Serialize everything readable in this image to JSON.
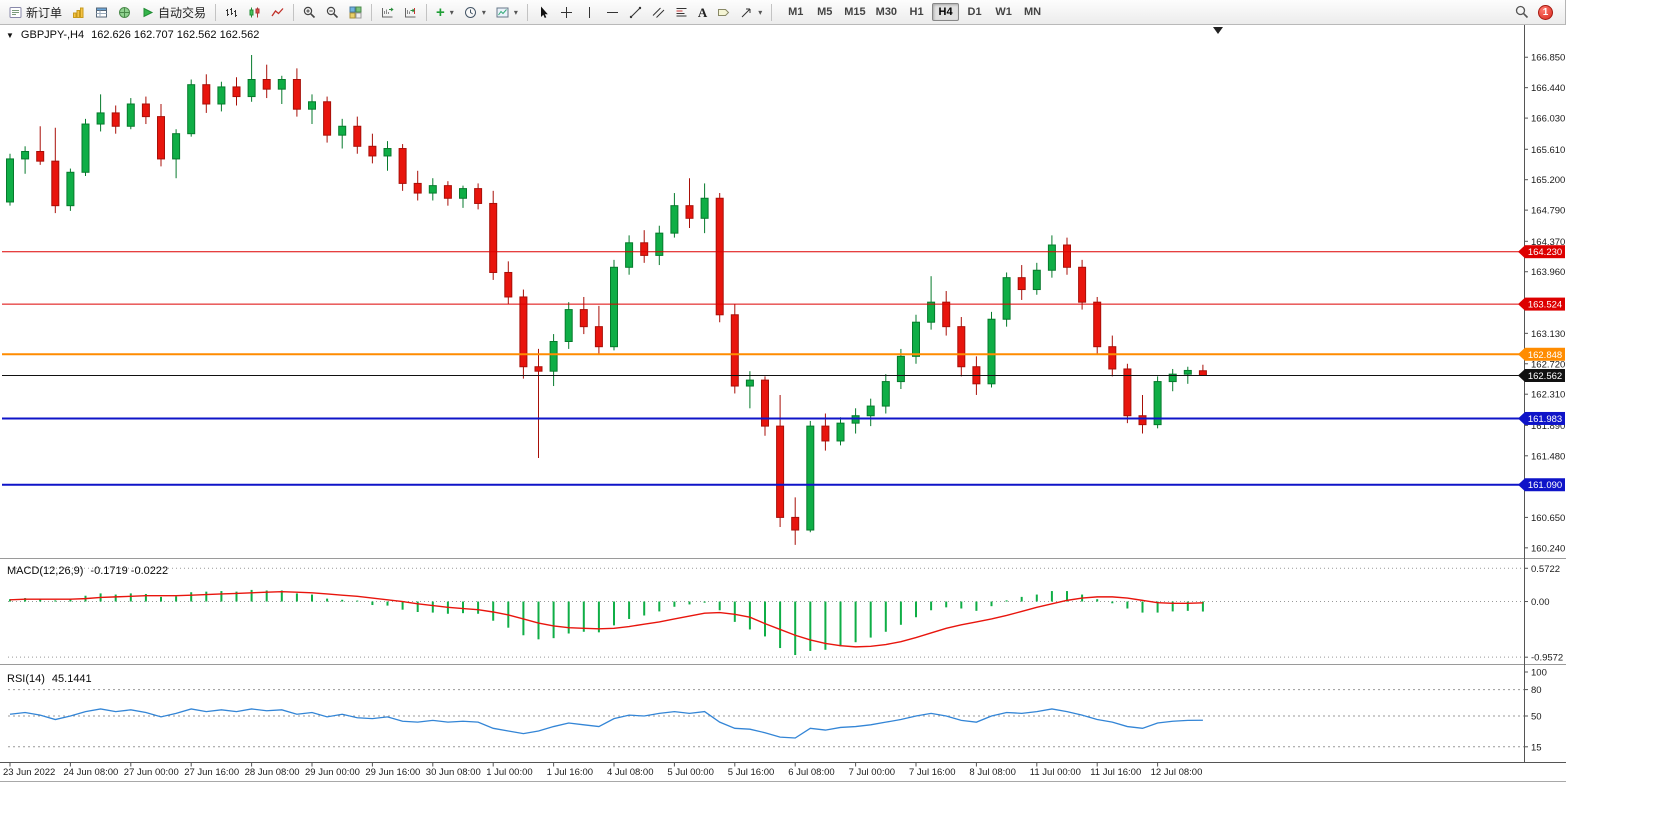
{
  "toolbar": {
    "new_order": "新订单",
    "auto_trading": "自动交易",
    "timeframes": [
      "M1",
      "M5",
      "M15",
      "M30",
      "H1",
      "H4",
      "D1",
      "W1",
      "MN"
    ],
    "active_timeframe": "H4",
    "notification_count": "1"
  },
  "chart_header": {
    "symbol_period": "GBPJPY-,H4",
    "ohlc": "162.626 162.707 162.562 162.562"
  },
  "colors": {
    "up": "#0fae46",
    "up_stroke": "#067a2c",
    "down": "#e8150d",
    "down_stroke": "#a80f08",
    "macd_hist": "#0fae46",
    "macd_signal": "#e8150d",
    "rsi_line": "#3385d6",
    "level_red": "#dd0000",
    "level_orange": "#ff8c00",
    "level_blue": "#0f14c8",
    "current_black": "#111111"
  },
  "chart_data": [
    {
      "type": "candlestick",
      "symbol": "GBPJPY-",
      "timeframe": "H4",
      "ohlc_current": {
        "open": 162.626,
        "high": 162.707,
        "low": 162.562,
        "close": 162.562
      },
      "y_range": [
        160.13,
        167.19
      ],
      "price_ticks": [
        "166.850",
        "166.440",
        "166.030",
        "165.610",
        "165.200",
        "164.790",
        "164.370",
        "163.960",
        "163.550",
        "163.130",
        "162.720",
        "162.310",
        "161.890",
        "161.480",
        "161.070",
        "160.650",
        "160.240"
      ],
      "x_labels": [
        "23 Jun 2022",
        "24 Jun 08:00",
        "27 Jun 00:00",
        "27 Jun 16:00",
        "28 Jun 08:00",
        "29 Jun 00:00",
        "29 Jun 16:00",
        "30 Jun 08:00",
        "1 Jul 00:00",
        "1 Jul 16:00",
        "4 Jul 08:00",
        "5 Jul 00:00",
        "5 Jul 16:00",
        "6 Jul 08:00",
        "7 Jul 00:00",
        "7 Jul 16:00",
        "8 Jul 08:00",
        "11 Jul 00:00",
        "11 Jul 16:00",
        "12 Jul 08:00"
      ],
      "label_every": 4,
      "hlines": [
        {
          "price": 164.23,
          "label": "164.230",
          "color": "#dd0000",
          "width": 1
        },
        {
          "price": 163.524,
          "label": "163.524",
          "color": "#dd0000",
          "width": 1
        },
        {
          "price": 162.848,
          "label": "162.848",
          "color": "#ff8c00",
          "width": 2
        },
        {
          "price": 162.562,
          "label": "162.562",
          "color": "#111111",
          "width": 1
        },
        {
          "price": 161.983,
          "label": "161.983",
          "color": "#0f14c8",
          "width": 2
        },
        {
          "price": 161.09,
          "label": "161.090",
          "color": "#0f14c8",
          "width": 2
        }
      ],
      "candles": [
        [
          164.9,
          165.55,
          164.85,
          165.48
        ],
        [
          165.48,
          165.65,
          165.28,
          165.58
        ],
        [
          165.58,
          165.92,
          165.4,
          165.45
        ],
        [
          165.45,
          165.9,
          164.75,
          164.85
        ],
        [
          164.85,
          165.35,
          164.78,
          165.3
        ],
        [
          165.3,
          166.02,
          165.25,
          165.95
        ],
        [
          165.95,
          166.35,
          165.85,
          166.1
        ],
        [
          166.1,
          166.2,
          165.82,
          165.92
        ],
        [
          165.92,
          166.3,
          165.88,
          166.22
        ],
        [
          166.22,
          166.32,
          165.95,
          166.05
        ],
        [
          166.05,
          166.22,
          165.38,
          165.48
        ],
        [
          165.48,
          165.88,
          165.22,
          165.82
        ],
        [
          165.82,
          166.55,
          165.78,
          166.48
        ],
        [
          166.48,
          166.62,
          166.1,
          166.22
        ],
        [
          166.22,
          166.52,
          166.12,
          166.45
        ],
        [
          166.45,
          166.58,
          166.2,
          166.32
        ],
        [
          166.32,
          166.88,
          166.25,
          166.55
        ],
        [
          166.55,
          166.75,
          166.3,
          166.42
        ],
        [
          166.42,
          166.6,
          166.22,
          166.55
        ],
        [
          166.55,
          166.7,
          166.05,
          166.15
        ],
        [
          166.15,
          166.35,
          165.95,
          166.25
        ],
        [
          166.25,
          166.32,
          165.7,
          165.8
        ],
        [
          165.8,
          166.02,
          165.62,
          165.92
        ],
        [
          165.92,
          166.05,
          165.55,
          165.65
        ],
        [
          165.65,
          165.82,
          165.42,
          165.52
        ],
        [
          165.52,
          165.72,
          165.32,
          165.62
        ],
        [
          165.62,
          165.68,
          165.05,
          165.15
        ],
        [
          165.15,
          165.32,
          164.92,
          165.02
        ],
        [
          165.02,
          165.22,
          164.92,
          165.12
        ],
        [
          165.12,
          165.18,
          164.85,
          164.95
        ],
        [
          164.95,
          165.12,
          164.82,
          165.08
        ],
        [
          165.08,
          165.15,
          164.8,
          164.88
        ],
        [
          164.88,
          165.05,
          163.85,
          163.95
        ],
        [
          163.95,
          164.1,
          163.52,
          163.62
        ],
        [
          163.62,
          163.72,
          162.52,
          162.68
        ],
        [
          162.68,
          162.92,
          161.45,
          162.62
        ],
        [
          162.62,
          163.12,
          162.42,
          163.02
        ],
        [
          163.02,
          163.55,
          162.92,
          163.45
        ],
        [
          163.45,
          163.62,
          163.12,
          163.22
        ],
        [
          163.22,
          163.5,
          162.85,
          162.95
        ],
        [
          162.95,
          164.12,
          162.9,
          164.02
        ],
        [
          164.02,
          164.45,
          163.92,
          164.35
        ],
        [
          164.35,
          164.52,
          164.08,
          164.18
        ],
        [
          164.18,
          164.58,
          164.05,
          164.48
        ],
        [
          164.48,
          165.02,
          164.42,
          164.85
        ],
        [
          164.85,
          165.22,
          164.55,
          164.68
        ],
        [
          164.68,
          165.15,
          164.48,
          164.95
        ],
        [
          164.95,
          165.02,
          163.28,
          163.38
        ],
        [
          163.38,
          163.52,
          162.32,
          162.42
        ],
        [
          162.42,
          162.62,
          162.12,
          162.5
        ],
        [
          162.5,
          162.55,
          161.75,
          161.88
        ],
        [
          161.88,
          162.3,
          160.52,
          160.65
        ],
        [
          160.65,
          160.92,
          160.28,
          160.48
        ],
        [
          160.48,
          161.95,
          160.45,
          161.88
        ],
        [
          161.88,
          162.05,
          161.55,
          161.68
        ],
        [
          161.68,
          162.0,
          161.62,
          161.92
        ],
        [
          161.92,
          162.12,
          161.78,
          162.02
        ],
        [
          162.02,
          162.25,
          161.88,
          162.15
        ],
        [
          162.15,
          162.58,
          162.05,
          162.48
        ],
        [
          162.48,
          162.92,
          162.38,
          162.82
        ],
        [
          162.82,
          163.38,
          162.72,
          163.28
        ],
        [
          163.28,
          163.9,
          163.18,
          163.55
        ],
        [
          163.55,
          163.7,
          163.1,
          163.22
        ],
        [
          163.22,
          163.35,
          162.55,
          162.68
        ],
        [
          162.68,
          162.82,
          162.3,
          162.45
        ],
        [
          162.45,
          163.42,
          162.4,
          163.32
        ],
        [
          163.32,
          163.95,
          163.22,
          163.88
        ],
        [
          163.88,
          164.05,
          163.58,
          163.72
        ],
        [
          163.72,
          164.08,
          163.65,
          163.98
        ],
        [
          163.98,
          164.45,
          163.88,
          164.32
        ],
        [
          164.32,
          164.42,
          163.92,
          164.02
        ],
        [
          164.02,
          164.12,
          163.45,
          163.55
        ],
        [
          163.55,
          163.62,
          162.85,
          162.95
        ],
        [
          162.95,
          163.1,
          162.55,
          162.65
        ],
        [
          162.65,
          162.72,
          161.92,
          162.02
        ],
        [
          162.02,
          162.3,
          161.78,
          161.9
        ],
        [
          161.9,
          162.55,
          161.85,
          162.48
        ],
        [
          162.48,
          162.65,
          162.35,
          162.58
        ],
        [
          162.58,
          162.68,
          162.45,
          162.63
        ],
        [
          162.626,
          162.707,
          162.562,
          162.562
        ]
      ]
    },
    {
      "type": "macd",
      "label": "MACD(12,26,9)",
      "values_text": "-0.1719 -0.0222",
      "axis_ticks": [
        "0.5722",
        "0.00",
        "-0.9572"
      ],
      "axis_tick_values": [
        0.5722,
        0,
        -0.9572
      ],
      "y_range": [
        -1.04,
        0.68
      ],
      "histogram": [
        0.04,
        0.06,
        0.05,
        0.02,
        0.05,
        0.1,
        0.14,
        0.12,
        0.14,
        0.13,
        0.08,
        0.09,
        0.16,
        0.17,
        0.18,
        0.17,
        0.2,
        0.19,
        0.19,
        0.14,
        0.12,
        0.05,
        0.03,
        -0.01,
        -0.06,
        -0.07,
        -0.14,
        -0.18,
        -0.19,
        -0.21,
        -0.2,
        -0.21,
        -0.33,
        -0.45,
        -0.58,
        -0.65,
        -0.63,
        -0.55,
        -0.52,
        -0.53,
        -0.41,
        -0.3,
        -0.24,
        -0.17,
        -0.09,
        -0.05,
        -0.02,
        -0.15,
        -0.35,
        -0.48,
        -0.6,
        -0.8,
        -0.92,
        -0.85,
        -0.83,
        -0.77,
        -0.7,
        -0.62,
        -0.52,
        -0.4,
        -0.27,
        -0.15,
        -0.1,
        -0.12,
        -0.16,
        -0.08,
        0.02,
        0.08,
        0.12,
        0.18,
        0.18,
        0.12,
        0.04,
        -0.03,
        -0.12,
        -0.19,
        -0.19,
        -0.17,
        -0.16,
        -0.1719
      ],
      "signal": [
        0.03,
        0.04,
        0.04,
        0.04,
        0.04,
        0.05,
        0.07,
        0.08,
        0.09,
        0.1,
        0.1,
        0.1,
        0.11,
        0.12,
        0.13,
        0.14,
        0.15,
        0.16,
        0.17,
        0.16,
        0.15,
        0.13,
        0.11,
        0.09,
        0.06,
        0.03,
        0.0,
        -0.04,
        -0.07,
        -0.1,
        -0.12,
        -0.14,
        -0.18,
        -0.23,
        -0.3,
        -0.37,
        -0.42,
        -0.45,
        -0.46,
        -0.47,
        -0.46,
        -0.43,
        -0.39,
        -0.35,
        -0.3,
        -0.25,
        -0.2,
        -0.19,
        -0.22,
        -0.27,
        -0.38,
        -0.48,
        -0.58,
        -0.66,
        -0.72,
        -0.76,
        -0.78,
        -0.77,
        -0.74,
        -0.69,
        -0.62,
        -0.54,
        -0.46,
        -0.4,
        -0.35,
        -0.3,
        -0.24,
        -0.17,
        -0.1,
        -0.04,
        0.02,
        0.06,
        0.08,
        0.08,
        0.06,
        0.02,
        -0.02,
        -0.03,
        -0.03,
        -0.0222
      ]
    },
    {
      "type": "rsi",
      "label": "RSI(14)",
      "value_text": "45.1441",
      "axis_ticks": [
        "100",
        "80",
        "50",
        "15"
      ],
      "axis_tick_values": [
        100,
        80,
        50,
        15
      ],
      "levels": [
        80,
        50,
        15
      ],
      "y_range": [
        0,
        100
      ],
      "values": [
        52,
        54,
        51,
        46,
        50,
        55,
        58,
        55,
        57,
        54,
        49,
        53,
        58,
        55,
        57,
        55,
        58,
        56,
        57,
        52,
        54,
        49,
        52,
        48,
        47,
        49,
        44,
        43,
        45,
        43,
        44,
        43,
        36,
        33,
        30,
        33,
        38,
        42,
        40,
        38,
        47,
        51,
        50,
        53,
        55,
        53,
        55,
        43,
        36,
        35,
        31,
        26,
        25,
        36,
        34,
        37,
        38,
        40,
        43,
        46,
        50,
        53,
        50,
        45,
        43,
        50,
        54,
        53,
        55,
        58,
        55,
        51,
        46,
        43,
        38,
        36,
        42,
        44,
        45,
        45.1441
      ]
    }
  ]
}
